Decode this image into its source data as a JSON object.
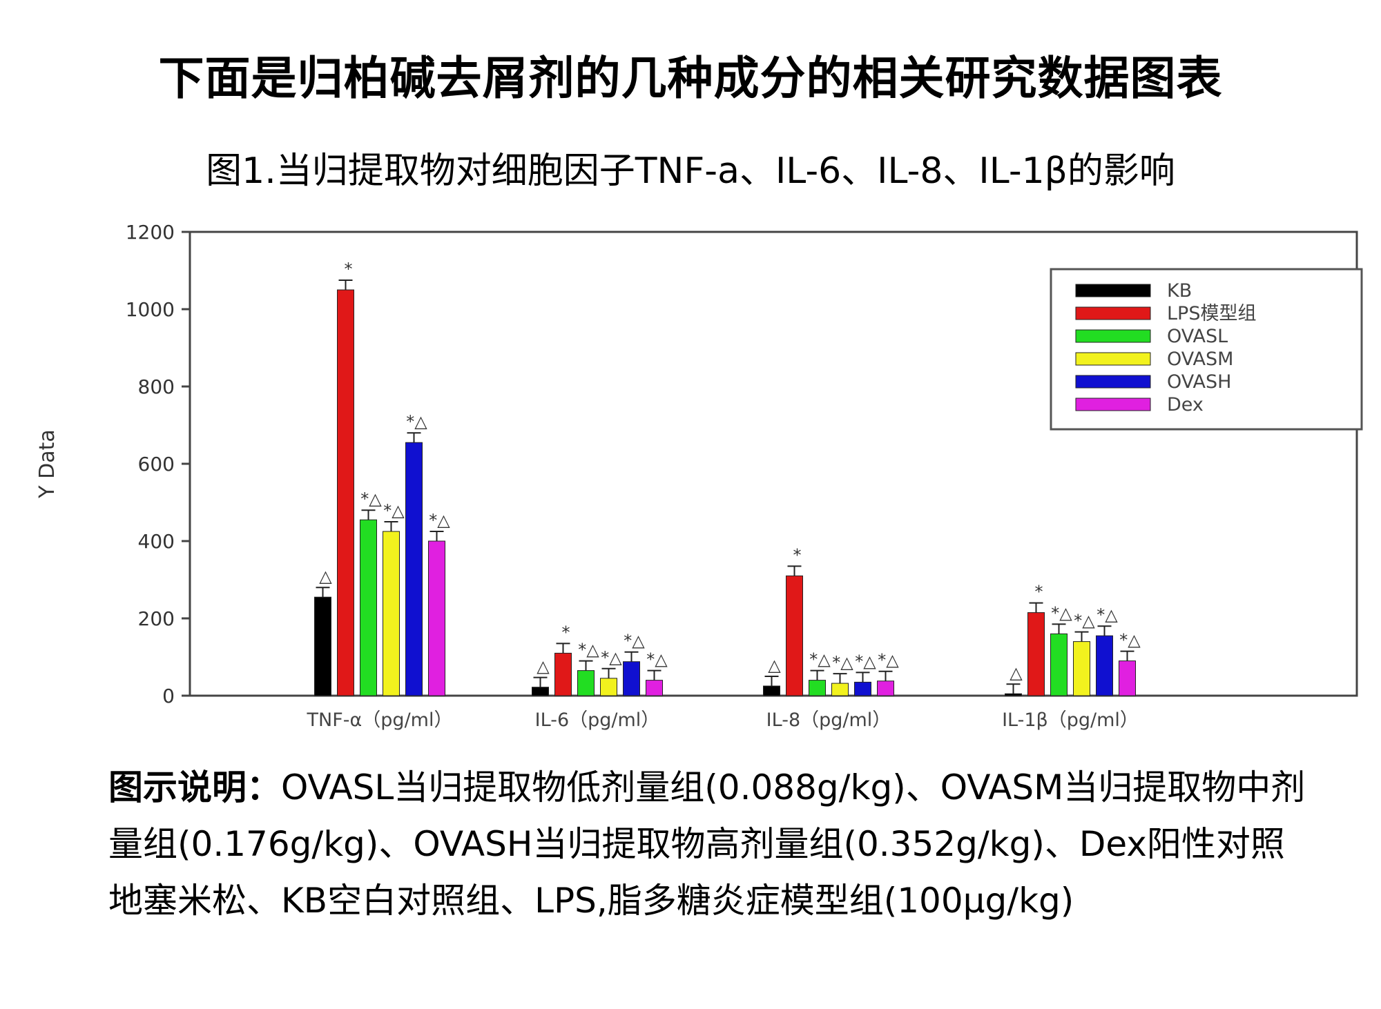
{
  "page": {
    "title": "下面是归柏碱去屑剂的几种成分的相关研究数据图表",
    "figure_title": "图1.当归提取物对细胞因子TNF-a、IL-6、IL-8、IL-1β的影响",
    "caption_label": "图示说明：",
    "caption_text": "OVASL当归提取物低剂量组(0.088g/kg)、OVASM当归提取物中剂量组(0.176g/kg)、OVASH当归提取物高剂量组(0.352g/kg)、Dex阳性对照地塞米松、KB空白对照组、LPS,脂多糖炎症模型组(100μg/kg)"
  },
  "chart_data": {
    "type": "bar",
    "title": "",
    "xlabel": "",
    "ylabel": "Y Data",
    "ylim": [
      0,
      1200
    ],
    "yticks": [
      0,
      200,
      400,
      600,
      800,
      1000,
      1200
    ],
    "grid": false,
    "legend_position": "top-right",
    "categories": [
      "TNF-α（pg/ml）",
      "IL-6（pg/ml）",
      "IL-8（pg/ml）",
      "IL-1β（pg/ml）"
    ],
    "series": [
      {
        "name": "KB",
        "color": "#000000",
        "values": [
          255,
          22,
          25,
          5
        ],
        "marks": [
          "△",
          "△",
          "△",
          "△"
        ]
      },
      {
        "name": "LPS模型组",
        "color": "#e01818",
        "values": [
          1050,
          110,
          310,
          215
        ],
        "marks": [
          "*",
          "*",
          "*",
          "*"
        ]
      },
      {
        "name": "OVASL",
        "color": "#22dd22",
        "values": [
          455,
          65,
          40,
          160
        ],
        "marks": [
          "*△",
          "*△",
          "*△",
          "*△"
        ]
      },
      {
        "name": "OVASM",
        "color": "#f2f21e",
        "values": [
          425,
          45,
          32,
          140
        ],
        "marks": [
          "*△",
          "*△",
          "*△",
          "*△"
        ]
      },
      {
        "name": "OVASH",
        "color": "#1010d0",
        "values": [
          655,
          88,
          35,
          155
        ],
        "marks": [
          "*△",
          "*△",
          "*△",
          "*△"
        ]
      },
      {
        "name": "Dex",
        "color": "#e020e0",
        "values": [
          400,
          40,
          38,
          90
        ],
        "marks": [
          "*△",
          "*△",
          "*△",
          "*△"
        ]
      }
    ]
  }
}
